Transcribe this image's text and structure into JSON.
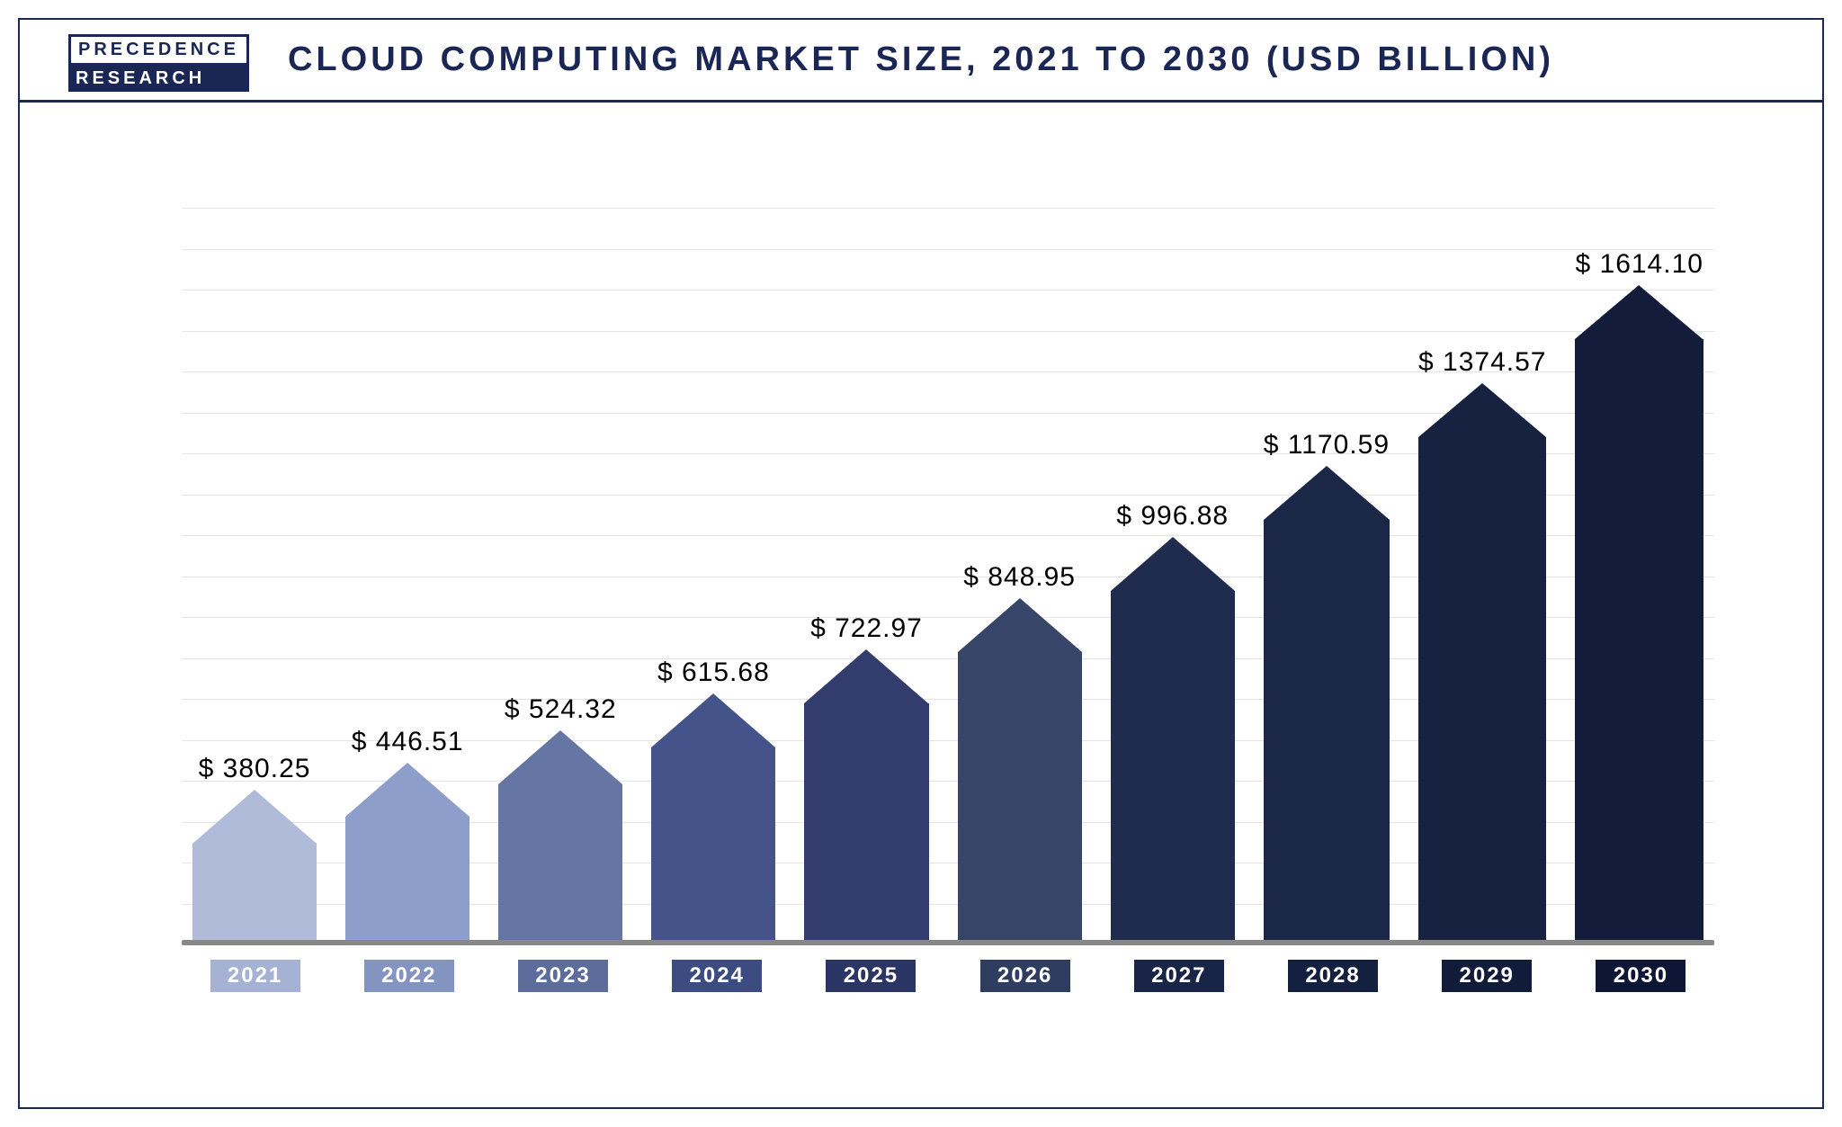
{
  "logo": {
    "top": "PRECEDENCE",
    "bottom": "RESEARCH"
  },
  "title": "CLOUD COMPUTING MARKET SIZE, 2021 TO 2030 (USD BILLION)",
  "chart": {
    "type": "bar",
    "ylim": [
      0,
      1800
    ],
    "gridline_step": 100,
    "gridline_color": "#e4e4e4",
    "baseline_color": "#888888",
    "background_color": "#ffffff",
    "border_color": "#1a2755",
    "arrow_height": 60,
    "bar_gap": 32,
    "label_fontsize": 30,
    "label_color": "#000000",
    "xaxis_label_fontsize": 24,
    "xaxis_label_text_color": "#ffffff",
    "title_fontsize": 38,
    "title_color": "#1a2755",
    "bars": [
      {
        "year": "2021",
        "value": 380.25,
        "label": "$ 380.25",
        "color": "#b0bbd9",
        "xaxis_bg": "#a6b2d3"
      },
      {
        "year": "2022",
        "value": 446.51,
        "label": "$ 446.51",
        "color": "#8d9ecb",
        "xaxis_bg": "#8394c1"
      },
      {
        "year": "2023",
        "value": 524.32,
        "label": "$ 524.32",
        "color": "#6576a4",
        "xaxis_bg": "#5c6d9b"
      },
      {
        "year": "2024",
        "value": 615.68,
        "label": "$ 615.68",
        "color": "#44548a",
        "xaxis_bg": "#3c4c82"
      },
      {
        "year": "2025",
        "value": 722.97,
        "label": "$ 722.97",
        "color": "#333d6d",
        "xaxis_bg": "#2b3565"
      },
      {
        "year": "2026",
        "value": 848.95,
        "label": "$ 848.95",
        "color": "#374568",
        "xaxis_bg": "#2f3d60"
      },
      {
        "year": "2027",
        "value": 996.88,
        "label": "$ 996.88",
        "color": "#1f2c4e",
        "xaxis_bg": "#182547"
      },
      {
        "year": "2028",
        "value": 1170.59,
        "label": "$ 1170.59",
        "color": "#1b2746",
        "xaxis_bg": "#142040"
      },
      {
        "year": "2029",
        "value": 1374.57,
        "label": "$ 1374.57",
        "color": "#172140",
        "xaxis_bg": "#111b3a"
      },
      {
        "year": "2030",
        "value": 1614.1,
        "label": "$ 1614.10",
        "color": "#131c3a",
        "xaxis_bg": "#0d1634"
      }
    ]
  }
}
